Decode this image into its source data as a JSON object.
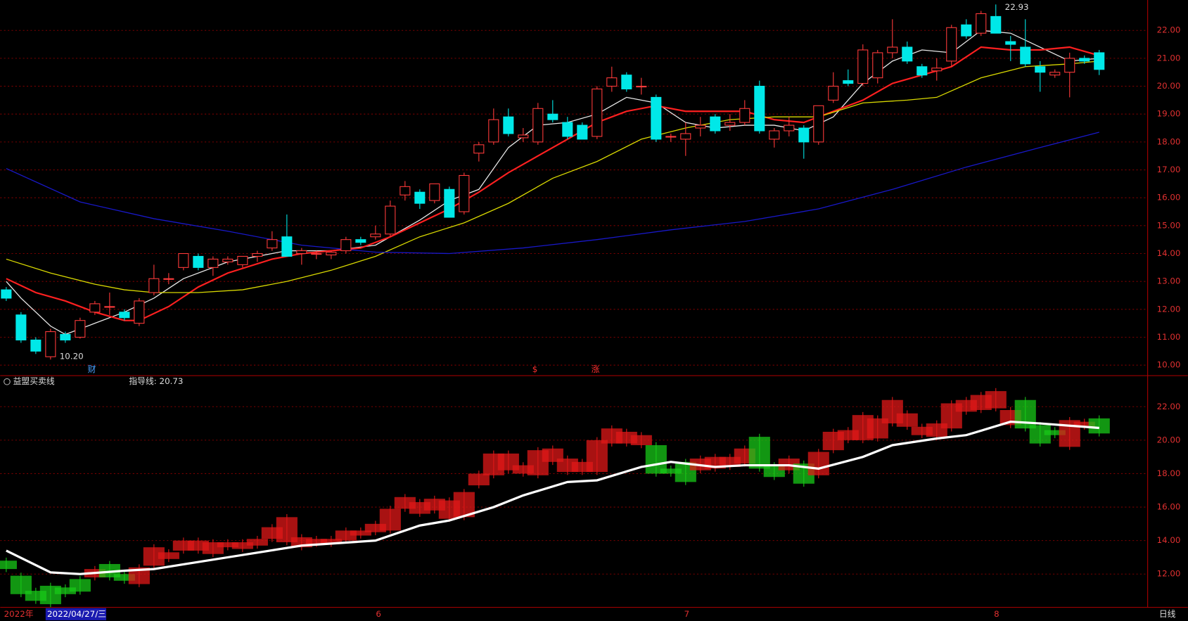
{
  "chart_data": {
    "type": "candlestick",
    "open": [
      12.7,
      11.8,
      10.9,
      10.3,
      11.1,
      11.0,
      11.9,
      12.1,
      11.9,
      11.5,
      12.6,
      13.1,
      13.5,
      13.9,
      13.5,
      13.7,
      13.6,
      13.9,
      14.2,
      14.6,
      14.0,
      14.0,
      13.95,
      14.1,
      14.5,
      14.6,
      14.7,
      16.1,
      16.2,
      15.9,
      16.3,
      15.5,
      17.6,
      18.0,
      18.9,
      18.15,
      18.0,
      19.0,
      18.7,
      18.6,
      18.2,
      20.0,
      20.4,
      20.0,
      19.6,
      18.2,
      18.1,
      18.5,
      18.9,
      18.6,
      18.7,
      20.0,
      18.1,
      18.4,
      18.5,
      18.0,
      19.5,
      20.2,
      20.1,
      20.3,
      21.2,
      21.4,
      20.7,
      20.55,
      20.9,
      22.2,
      21.9,
      22.5,
      21.6,
      21.4,
      20.7,
      20.4,
      20.5,
      21.0,
      21.2
    ],
    "high": [
      12.8,
      11.9,
      11.0,
      11.3,
      11.2,
      11.7,
      12.3,
      12.6,
      12.0,
      12.4,
      13.6,
      13.3,
      14.0,
      14.0,
      13.9,
      13.9,
      13.9,
      14.1,
      14.8,
      15.4,
      14.2,
      14.1,
      14.1,
      14.6,
      14.6,
      15.0,
      15.9,
      16.6,
      16.3,
      16.5,
      16.4,
      16.9,
      18.0,
      19.2,
      19.2,
      18.5,
      19.4,
      19.5,
      18.9,
      18.7,
      20.0,
      20.7,
      20.5,
      20.3,
      19.7,
      18.3,
      18.7,
      18.9,
      19.0,
      19.0,
      19.5,
      20.2,
      18.5,
      18.9,
      18.6,
      19.3,
      20.5,
      20.6,
      21.5,
      21.3,
      22.4,
      21.6,
      20.8,
      21.0,
      22.2,
      22.4,
      22.7,
      22.93,
      21.8,
      22.4,
      20.9,
      20.6,
      21.2,
      21.1,
      21.3
    ],
    "low": [
      12.3,
      10.8,
      10.4,
      10.2,
      10.8,
      10.95,
      11.8,
      11.8,
      11.6,
      11.4,
      12.5,
      12.9,
      13.4,
      13.4,
      13.2,
      13.6,
      13.5,
      13.7,
      14.1,
      13.9,
      13.6,
      13.8,
      13.8,
      14.0,
      14.3,
      14.5,
      14.6,
      15.9,
      15.6,
      15.8,
      15.3,
      15.4,
      17.3,
      17.9,
      18.2,
      18.0,
      17.9,
      18.7,
      18.1,
      18.1,
      18.1,
      19.8,
      19.8,
      19.7,
      18.0,
      18.0,
      17.5,
      18.2,
      18.3,
      18.4,
      18.6,
      18.3,
      17.8,
      18.2,
      17.4,
      17.9,
      19.4,
      20.0,
      20.0,
      20.1,
      21.0,
      20.8,
      20.3,
      20.2,
      20.7,
      21.7,
      21.8,
      21.9,
      20.9,
      20.7,
      19.8,
      20.3,
      19.6,
      20.8,
      20.4
    ],
    "close": [
      12.4,
      10.9,
      10.5,
      11.2,
      10.9,
      11.6,
      12.2,
      12.1,
      11.7,
      12.3,
      13.1,
      13.1,
      14.0,
      13.5,
      13.8,
      13.8,
      13.9,
      14.0,
      14.5,
      13.9,
      14.1,
      14.0,
      14.05,
      14.5,
      14.4,
      14.7,
      15.7,
      16.4,
      15.8,
      16.5,
      15.3,
      16.8,
      17.9,
      18.8,
      18.3,
      18.25,
      19.2,
      18.8,
      18.2,
      18.1,
      19.9,
      20.3,
      19.9,
      20.0,
      18.1,
      18.2,
      18.3,
      18.6,
      18.4,
      18.7,
      19.2,
      18.4,
      18.4,
      18.6,
      18.0,
      19.3,
      20.0,
      20.1,
      21.3,
      21.2,
      21.4,
      20.9,
      20.4,
      20.65,
      22.1,
      21.8,
      22.6,
      21.9,
      21.5,
      20.8,
      20.5,
      20.5,
      21.0,
      20.9,
      20.6
    ],
    "up_color": "#ff3a3a",
    "down_color": "#00e8e8",
    "ylim": [
      9.65,
      23.09
    ],
    "yticks": [
      {
        "value": 10,
        "label": "10.00"
      },
      {
        "value": 11,
        "label": "11.00"
      },
      {
        "value": 12,
        "label": "12.00"
      },
      {
        "value": 13,
        "label": "13.00"
      },
      {
        "value": 14,
        "label": "14.00"
      },
      {
        "value": 15,
        "label": "15.00"
      },
      {
        "value": 16,
        "label": "16.00"
      },
      {
        "value": 17,
        "label": "17.00"
      },
      {
        "value": 18,
        "label": "18.00"
      },
      {
        "value": 19,
        "label": "19.00"
      },
      {
        "value": 20,
        "label": "20.00"
      },
      {
        "value": 21,
        "label": "21.00"
      },
      {
        "value": 22,
        "label": "22.00"
      }
    ],
    "grid": true,
    "series": [
      {
        "color": "#e8e8e8",
        "x": [
          0,
          1,
          3,
          4,
          6,
          8,
          10,
          12,
          15,
          19,
          22,
          25,
          28,
          30,
          32,
          34,
          36,
          38,
          40,
          42,
          44,
          46,
          48,
          50,
          52,
          54,
          56,
          58,
          60,
          62,
          64,
          66,
          68,
          70,
          72,
          74
        ],
        "values": [
          13.0,
          12.4,
          11.4,
          11.1,
          11.5,
          11.9,
          12.4,
          13.1,
          13.7,
          14.1,
          14.1,
          14.3,
          15.2,
          15.9,
          16.3,
          17.8,
          18.6,
          18.7,
          19.0,
          19.6,
          19.4,
          18.7,
          18.5,
          18.6,
          18.6,
          18.4,
          18.9,
          20.1,
          20.9,
          21.3,
          21.2,
          22.0,
          21.9,
          21.4,
          20.9,
          21.0
        ]
      },
      {
        "color": "#ff2020",
        "x": [
          0,
          2,
          4,
          6,
          8,
          9,
          11,
          13,
          15,
          18,
          20,
          24,
          26,
          28,
          30,
          32,
          34,
          36,
          38,
          40,
          42,
          44,
          46,
          48,
          50,
          52,
          54,
          56,
          58,
          60,
          62,
          64,
          66,
          68,
          70,
          72,
          74
        ],
        "values": [
          13.1,
          12.6,
          12.3,
          11.9,
          11.6,
          11.6,
          12.1,
          12.8,
          13.3,
          13.8,
          14.0,
          14.2,
          14.6,
          15.1,
          15.6,
          16.2,
          16.9,
          17.5,
          18.1,
          18.7,
          19.1,
          19.3,
          19.1,
          19.1,
          19.1,
          18.8,
          18.7,
          19.1,
          19.5,
          20.1,
          20.4,
          20.7,
          21.4,
          21.3,
          21.3,
          21.4,
          21.1
        ]
      },
      {
        "color": "#d8d800",
        "x": [
          0,
          3,
          6,
          8,
          10,
          13,
          16,
          19,
          22,
          25,
          28,
          31,
          34,
          37,
          40,
          43,
          46,
          49,
          52,
          55,
          58,
          61,
          63,
          66,
          69,
          72,
          74
        ],
        "values": [
          13.8,
          13.3,
          12.9,
          12.7,
          12.6,
          12.6,
          12.7,
          13.0,
          13.4,
          13.9,
          14.6,
          15.1,
          15.8,
          16.7,
          17.3,
          18.1,
          18.5,
          18.8,
          18.9,
          18.9,
          19.4,
          19.5,
          19.6,
          20.3,
          20.7,
          20.8,
          20.9
        ]
      },
      {
        "color": "#1818c8",
        "x": [
          0,
          5,
          10,
          15,
          20,
          25,
          30,
          35,
          40,
          45,
          50,
          55,
          60,
          65,
          70,
          74
        ],
        "values": [
          17.05,
          15.85,
          15.25,
          14.8,
          14.3,
          14.05,
          14.0,
          14.2,
          14.5,
          14.85,
          15.15,
          15.6,
          16.3,
          17.1,
          17.8,
          18.35
        ]
      }
    ],
    "annotations": {
      "high": "22.93",
      "low": "10.20",
      "markers": [
        "财",
        "$",
        "涨"
      ]
    },
    "lower": {
      "title": "益盟买卖线",
      "guide_label": "指导线: 20.73",
      "guide_color": "#ffffff",
      "x": [
        0,
        3,
        5,
        8,
        10,
        15,
        20,
        25,
        28,
        30,
        33,
        35,
        38,
        40,
        43,
        45,
        48,
        50,
        53,
        55,
        58,
        60,
        63,
        65,
        68,
        70,
        74
      ],
      "guide": [
        13.4,
        12.1,
        12.0,
        12.2,
        12.3,
        13.0,
        13.7,
        14.0,
        14.9,
        15.2,
        16.0,
        16.7,
        17.5,
        17.6,
        18.4,
        18.7,
        18.4,
        18.5,
        18.5,
        18.3,
        19.0,
        19.7,
        20.1,
        20.3,
        21.1,
        21.0,
        20.73
      ],
      "ylim": [
        10.1,
        23.81
      ],
      "yticks": [
        {
          "value": 12,
          "label": "12.00"
        },
        {
          "value": 14,
          "label": "14.00"
        },
        {
          "value": 16,
          "label": "16.00"
        },
        {
          "value": 18,
          "label": "18.00"
        },
        {
          "value": 20,
          "label": "20.00"
        },
        {
          "value": 22,
          "label": "22.00"
        }
      ],
      "above_color": "#e01818",
      "below_color": "#18c818"
    },
    "x_labels": [
      "2022年",
      "2022/04/27/三",
      "6",
      "7",
      "8"
    ],
    "period": "日线"
  }
}
